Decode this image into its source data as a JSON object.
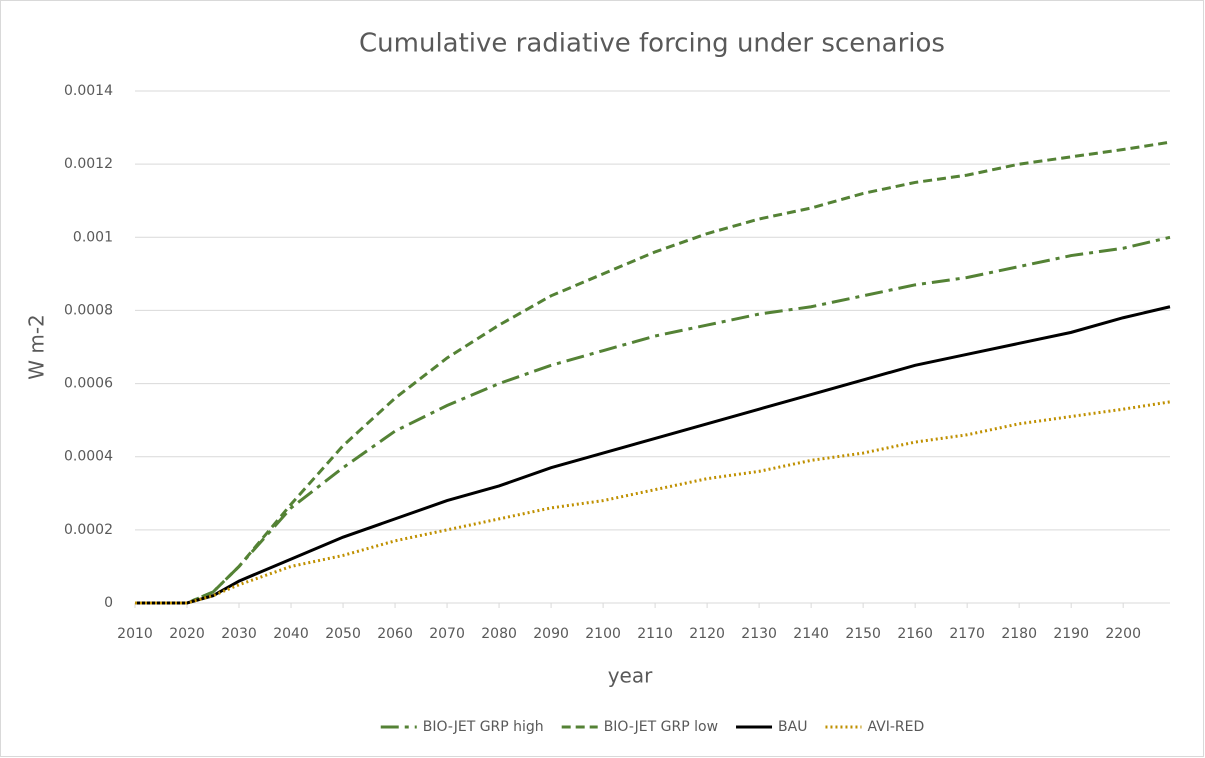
{
  "chart_data": {
    "type": "line",
    "title": "Cumulative radiative forcing under scenarios",
    "x_label": "year",
    "y_label": "W m-2",
    "x": [
      2010,
      2020,
      2025,
      2030,
      2040,
      2050,
      2060,
      2070,
      2080,
      2090,
      2100,
      2110,
      2120,
      2130,
      2140,
      2150,
      2160,
      2170,
      2180,
      2190,
      2200,
      2209
    ],
    "xlim": [
      2010,
      2209
    ],
    "xticks": [
      2010,
      2020,
      2030,
      2040,
      2050,
      2060,
      2070,
      2080,
      2090,
      2100,
      2110,
      2120,
      2130,
      2140,
      2150,
      2160,
      2170,
      2180,
      2190,
      2200
    ],
    "ylim": [
      0,
      0.0014
    ],
    "yticks": [
      0,
      0.0002,
      0.0004,
      0.0006,
      0.0008,
      0.001,
      0.0012,
      0.0014
    ],
    "grid": true,
    "legend": "bottom",
    "series": [
      {
        "name": "BIO-JET GRP high",
        "color": "#548235",
        "dash": "dashdot",
        "values": [
          0,
          0,
          3e-05,
          0.0001,
          0.00026,
          0.00037,
          0.00047,
          0.00054,
          0.0006,
          0.00065,
          0.00069,
          0.00073,
          0.00076,
          0.00079,
          0.00081,
          0.00084,
          0.00087,
          0.00089,
          0.00092,
          0.00095,
          0.00097,
          0.001
        ]
      },
      {
        "name": "BIO-JET GRP low",
        "color": "#548235",
        "dash": "dash",
        "values": [
          0,
          0,
          3e-05,
          0.0001,
          0.00027,
          0.00043,
          0.00056,
          0.00067,
          0.00076,
          0.00084,
          0.0009,
          0.00096,
          0.00101,
          0.00105,
          0.00108,
          0.00112,
          0.00115,
          0.00117,
          0.0012,
          0.00122,
          0.00124,
          0.00126
        ]
      },
      {
        "name": "BAU",
        "color": "#000000",
        "dash": "solid",
        "values": [
          0,
          0,
          2e-05,
          6e-05,
          0.00012,
          0.00018,
          0.00023,
          0.00028,
          0.00032,
          0.00037,
          0.00041,
          0.00045,
          0.00049,
          0.00053,
          0.00057,
          0.00061,
          0.00065,
          0.00068,
          0.00071,
          0.00074,
          0.00078,
          0.00081
        ]
      },
      {
        "name": "AVI-RED",
        "color": "#bf9000",
        "dash": "dot",
        "values": [
          0,
          0,
          2e-05,
          5e-05,
          0.0001,
          0.00013,
          0.00017,
          0.0002,
          0.00023,
          0.00026,
          0.00028,
          0.00031,
          0.00034,
          0.00036,
          0.00039,
          0.00041,
          0.00044,
          0.00046,
          0.00049,
          0.00051,
          0.00053,
          0.00055
        ]
      }
    ]
  }
}
